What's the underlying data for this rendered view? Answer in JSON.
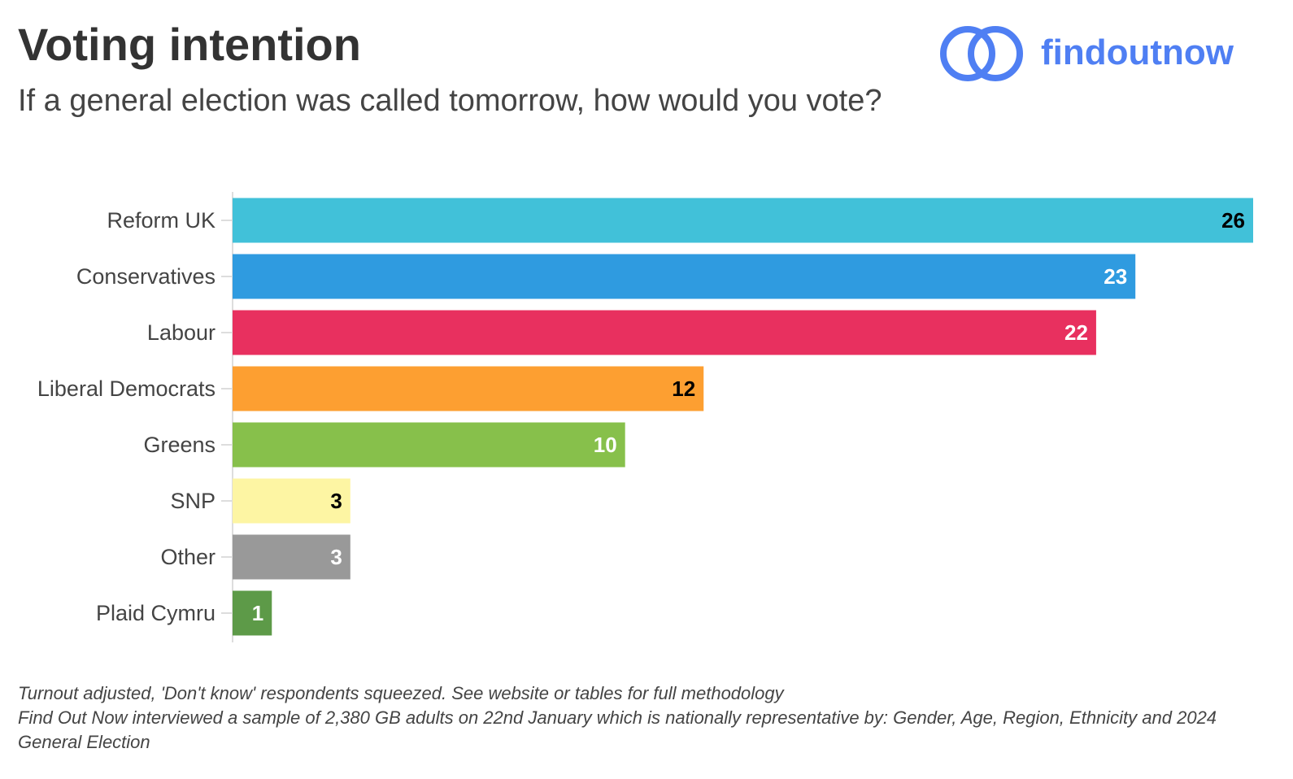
{
  "chart_data": {
    "type": "barh",
    "title": "Voting intention",
    "subtitle": "If a general election was called tomorrow, how would you vote?",
    "categories": [
      "Reform UK",
      "Conservatives",
      "Labour",
      "Liberal Democrats",
      "Greens",
      "SNP",
      "Other",
      "Plaid Cymru"
    ],
    "values": [
      26,
      23,
      22,
      12,
      10,
      3,
      3,
      1
    ],
    "colors": [
      "#41c1d9",
      "#2f9be0",
      "#e8305f",
      "#fd9f31",
      "#87c04b",
      "#fdf5a3",
      "#999999",
      "#5d9a48"
    ],
    "label_colors": [
      "#000000",
      "#ffffff",
      "#ffffff",
      "#000000",
      "#ffffff",
      "#000000",
      "#ffffff",
      "#ffffff"
    ],
    "xlim": [
      0,
      26
    ],
    "notes": [
      "Turnout adjusted, 'Don't know' respondents squeezed. See website or tables for full methodology",
      "Find Out Now interviewed a sample of 2,380 GB adults on 22nd January which is nationally representative by: Gender, Age, Region, Ethnicity and 2024 General Election"
    ]
  },
  "logo": {
    "text": "findoutnow"
  }
}
